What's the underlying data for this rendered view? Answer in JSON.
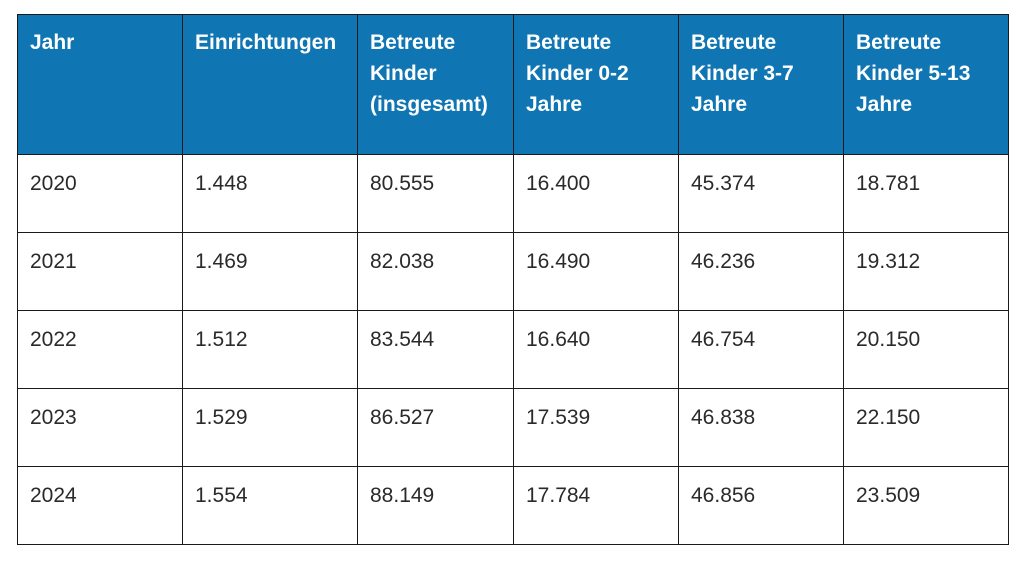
{
  "table": {
    "headers": [
      "Jahr",
      "Einrichtungen",
      "Betreute Kinder (insgesamt)",
      "Betreute Kinder 0-2 Jahre",
      "Betreute Kinder 3-7 Jahre",
      "Betreute Kinder 5-13 Jahre"
    ],
    "rows": [
      [
        "2020",
        "1.448",
        "80.555",
        "16.400",
        "45.374",
        "18.781"
      ],
      [
        "2021",
        "1.469",
        "82.038",
        "16.490",
        "46.236",
        "19.312"
      ],
      [
        "2022",
        "1.512",
        "83.544",
        "16.640",
        "46.754",
        "20.150"
      ],
      [
        "2023",
        "1.529",
        "86.527",
        "17.539",
        "46.838",
        "22.150"
      ],
      [
        "2024",
        "1.554",
        "88.149",
        "17.784",
        "46.856",
        "23.509"
      ]
    ]
  },
  "colors": {
    "header_bg": "#0f75b3",
    "header_text": "#ffffff",
    "border": "#1a1a1a",
    "body_text": "#2a2a2a"
  }
}
